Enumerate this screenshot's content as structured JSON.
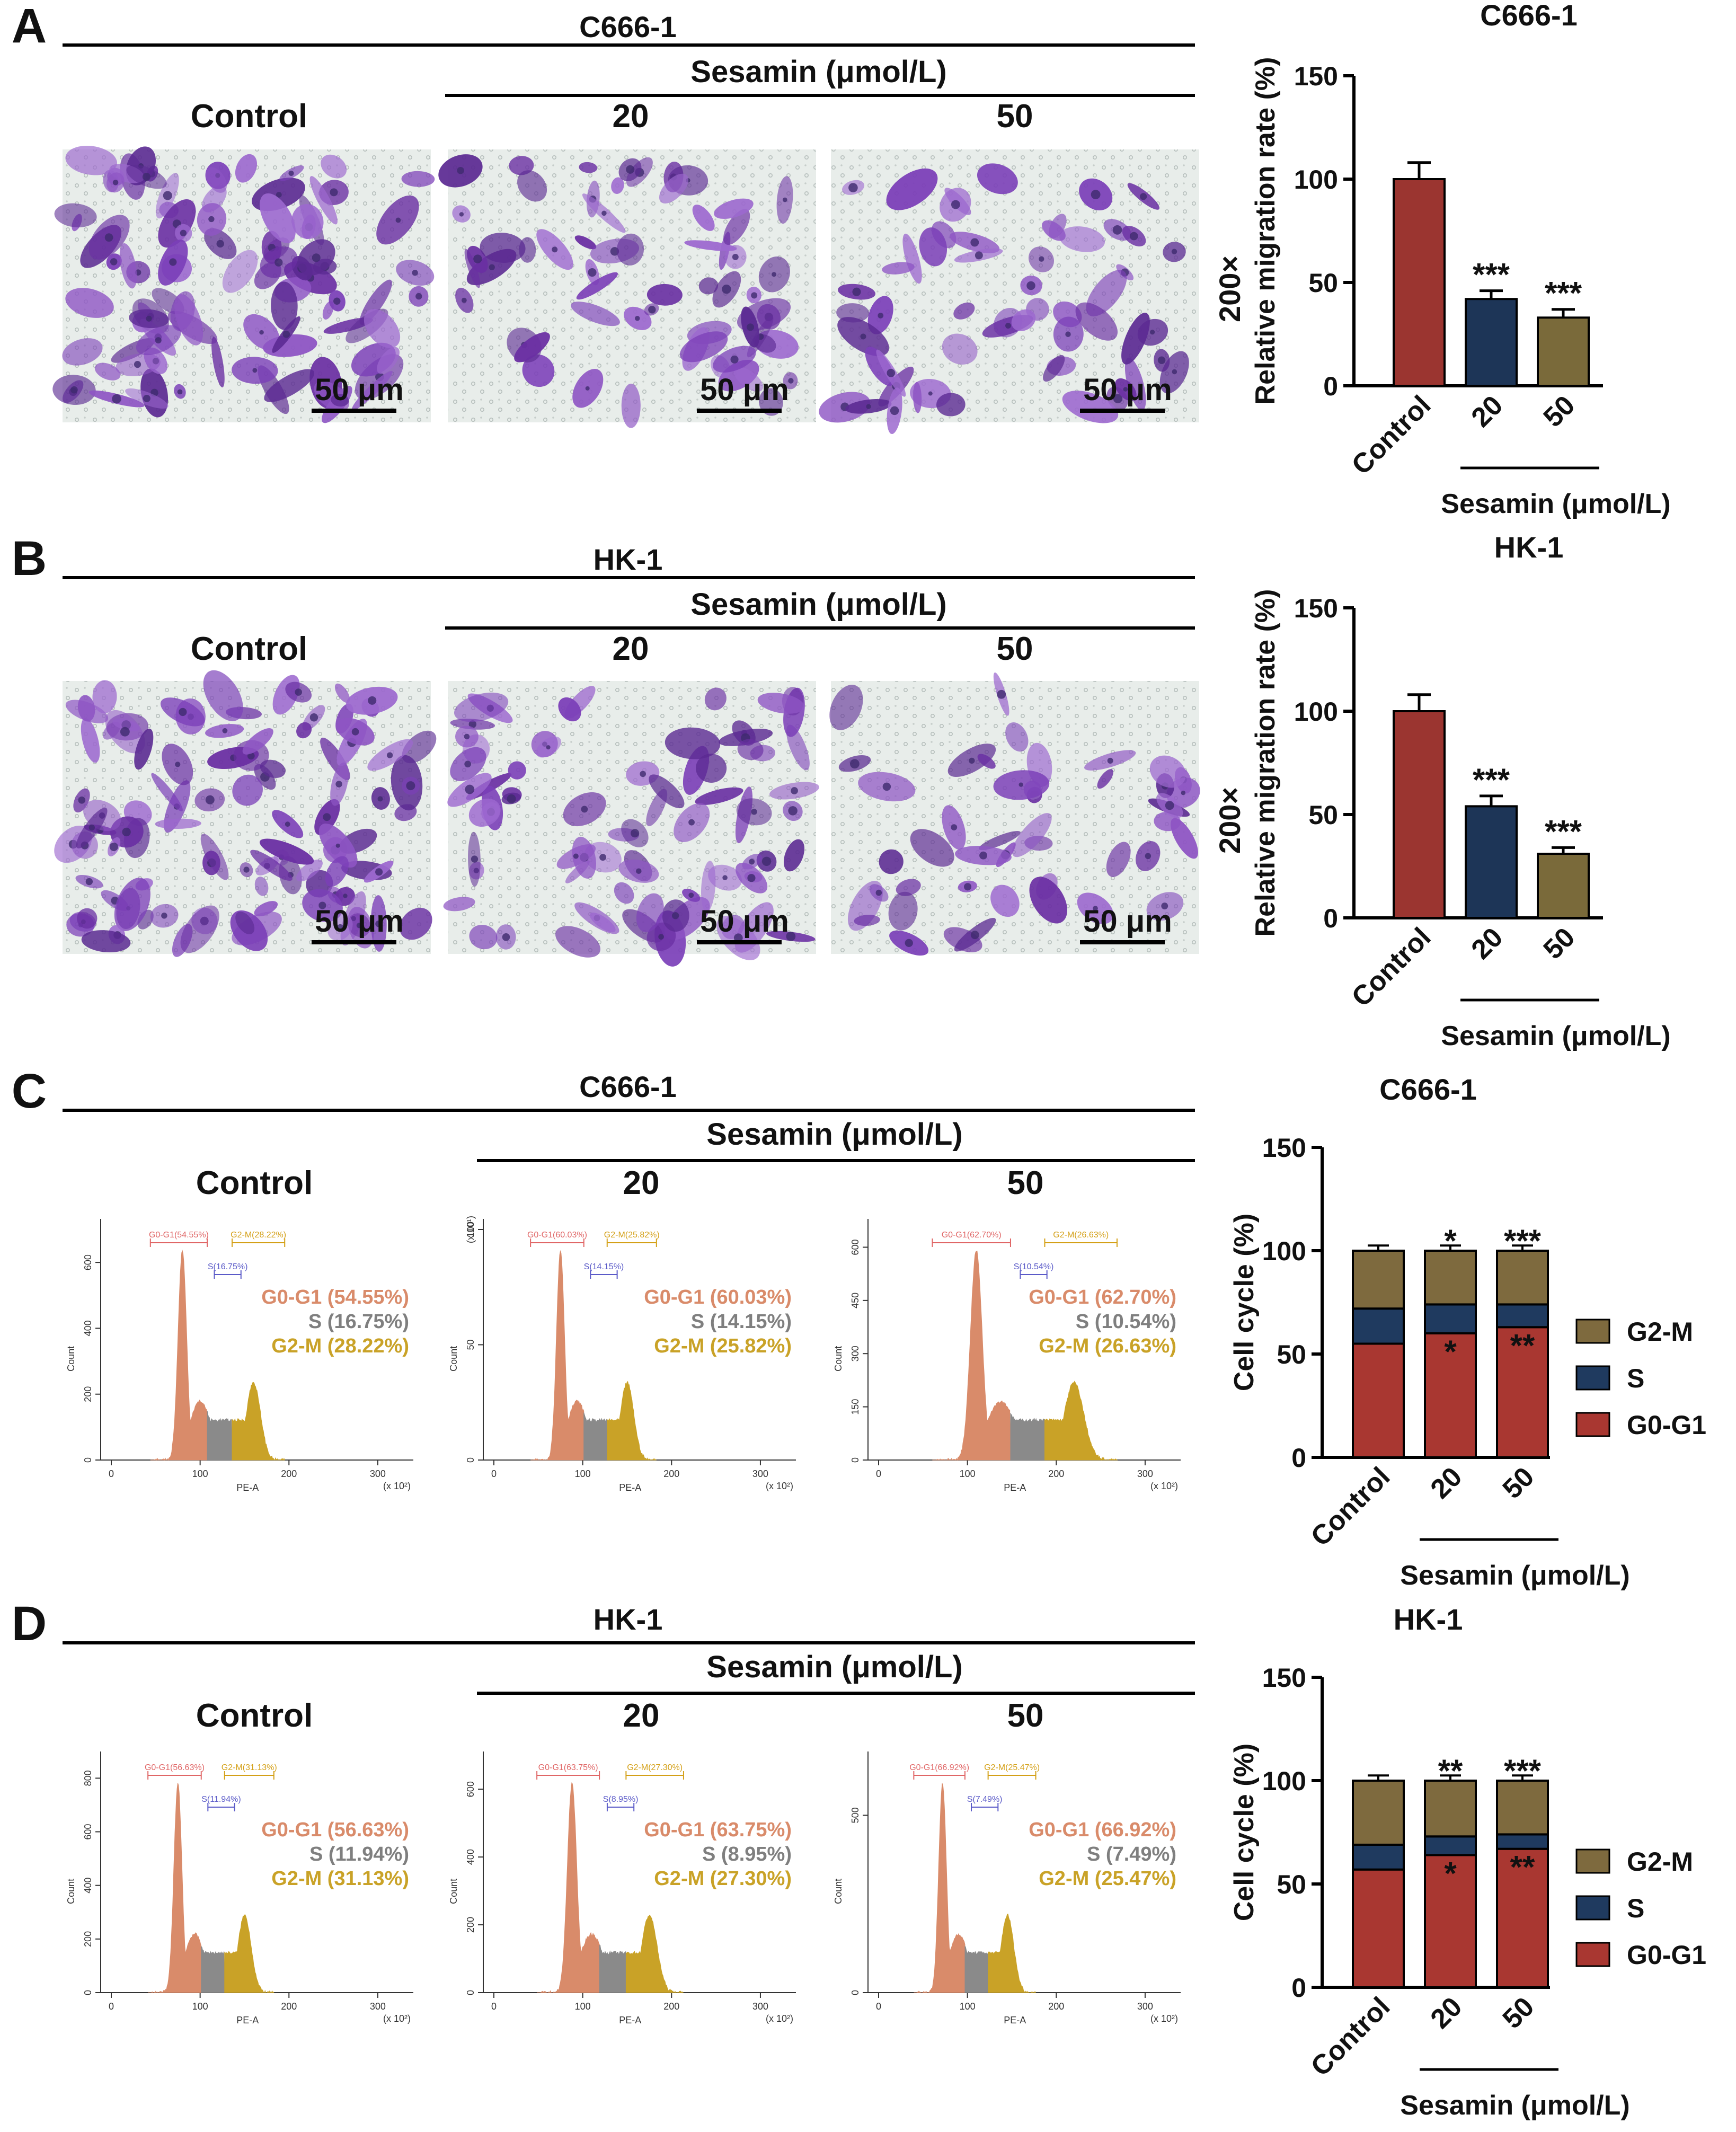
{
  "colors": {
    "control": "#9B3530",
    "s20": "#1D3557",
    "s50": "#7A6A3A",
    "g0g1": "#A93731",
    "s_phase": "#1F3A5F",
    "g2m": "#7E6A3E",
    "stain": "#7A3FB5",
    "hist_g0g1": "#D98B6A",
    "hist_s": "#8A8A8A",
    "hist_g2m": "#C9A227",
    "hist_g0g1_label": "#E06666",
    "hist_s_label": "#5A5AC8",
    "hist_g2m_label": "#D4A017"
  },
  "panels": {
    "A": {
      "letter": "A",
      "cell_line": "C666-1",
      "treatment_label": "Sesamin (μmol/L)",
      "conditions": [
        "Control",
        "20",
        "50"
      ],
      "scale_bar": "50 μm",
      "magnification": "200×"
    },
    "B": {
      "letter": "B",
      "cell_line": "HK-1",
      "treatment_label": "Sesamin (μmol/L)",
      "conditions": [
        "Control",
        "20",
        "50"
      ],
      "scale_bar": "50 μm",
      "magnification": "200×"
    },
    "C": {
      "letter": "C",
      "cell_line": "C666-1",
      "treatment_label": "Sesamin (μmol/L)",
      "conditions": [
        "Control",
        "20",
        "50"
      ],
      "histograms": [
        {
          "g0g1_gate": "G0-G1(54.55%)",
          "s_gate": "S(16.75%)",
          "g2m_gate": "G2-M(28.22%)",
          "g0g1": "G0-G1 (54.55%)",
          "s": "S (16.75%)",
          "g2m": "G2-M (28.22%)",
          "y_mult": "",
          "y_ticks": [
            "0",
            "200",
            "400",
            "600"
          ],
          "y_max": 700,
          "x_ticks": [
            "0",
            "100",
            "200",
            "300"
          ],
          "x_mult": "(x 10²)",
          "xlabel": "PE-A",
          "ylabel": "Count",
          "g0g1_peak": 80,
          "g2m_peak": 160
        },
        {
          "g0g1_gate": "G0-G1(60.03%)",
          "s_gate": "S(14.15%)",
          "g2m_gate": "G2-M(25.82%)",
          "g0g1": "G0-G1 (60.03%)",
          "s": "S (14.15%)",
          "g2m": "G2-M (25.82%)",
          "y_mult": "(x 10¹)",
          "y_ticks": [
            "0",
            "50",
            "100"
          ],
          "y_max": 100,
          "x_ticks": [
            "0",
            "100",
            "200",
            "300"
          ],
          "x_mult": "(x 10²)",
          "xlabel": "PE-A",
          "ylabel": "Count",
          "g0g1_peak": 75,
          "g2m_peak": 150
        },
        {
          "g0g1_gate": "G0-G1(62.70%)",
          "s_gate": "S(10.54%)",
          "g2m_gate": "G2-M(26.63%)",
          "g0g1": "G0-G1 (62.70%)",
          "s": "S (10.54%)",
          "g2m": "G2-M (26.63%)",
          "y_mult": "",
          "y_ticks": [
            "0",
            "150",
            "300",
            "450",
            "600"
          ],
          "y_max": 650,
          "x_ticks": [
            "0",
            "100",
            "200",
            "300"
          ],
          "x_mult": "(x 10²)",
          "xlabel": "PE-A",
          "ylabel": "Count",
          "g0g1_peak": 110,
          "g2m_peak": 220
        }
      ]
    },
    "D": {
      "letter": "D",
      "cell_line": "HK-1",
      "treatment_label": "Sesamin (μmol/L)",
      "conditions": [
        "Control",
        "20",
        "50"
      ],
      "histograms": [
        {
          "g0g1_gate": "G0-G1(56.63%)",
          "s_gate": "S(11.94%)",
          "g2m_gate": "G2-M(31.13%)",
          "g0g1": "G0-G1 (56.63%)",
          "s": "S (11.94%)",
          "g2m": "G2-M (31.13%)",
          "y_mult": "",
          "y_ticks": [
            "0",
            "200",
            "400",
            "600",
            "800"
          ],
          "y_max": 860,
          "x_ticks": [
            "0",
            "100",
            "200",
            "300"
          ],
          "x_mult": "(x 10²)",
          "xlabel": "PE-A",
          "ylabel": "Count",
          "g0g1_peak": 75,
          "g2m_peak": 150
        },
        {
          "g0g1_gate": "G0-G1(63.75%)",
          "s_gate": "S(8.95%)",
          "g2m_gate": "G2-M(27.30%)",
          "g0g1": "G0-G1 (63.75%)",
          "s": "S (8.95%)",
          "g2m": "G2-M (27.30%)",
          "y_mult": "",
          "y_ticks": [
            "0",
            "200",
            "400",
            "600"
          ],
          "y_max": 680,
          "x_ticks": [
            "0",
            "100",
            "200",
            "300"
          ],
          "x_mult": "(x 10²)",
          "xlabel": "PE-A",
          "ylabel": "Count",
          "g0g1_peak": 88,
          "g2m_peak": 175
        },
        {
          "g0g1_gate": "G0-G1(66.92%)",
          "s_gate": "S(7.49%)",
          "g2m_gate": "G2-M(25.47%)",
          "g0g1": "G0-G1 (66.92%)",
          "s": "S (7.49%)",
          "g2m": "G2-M (25.47%)",
          "y_mult": "",
          "y_ticks": [
            "0",
            "500"
          ],
          "y_max": 650,
          "x_ticks": [
            "0",
            "100",
            "200",
            "300"
          ],
          "x_mult": "(x 10²)",
          "xlabel": "PE-A",
          "ylabel": "Count",
          "g0g1_peak": 72,
          "g2m_peak": 145
        }
      ]
    }
  },
  "chart_data": [
    {
      "panel": "A",
      "type": "bar",
      "title": "C666-1",
      "ylabel": "Relative migration rate (%)",
      "xgroup_label": "Sesamin (μmol/L)",
      "categories": [
        "Control",
        "20",
        "50"
      ],
      "values": [
        100,
        42,
        33
      ],
      "errors": [
        8,
        4,
        4
      ],
      "significance": [
        "",
        "***",
        "***"
      ],
      "ylim": [
        0,
        150
      ],
      "yticks": [
        0,
        50,
        100,
        150
      ]
    },
    {
      "panel": "B",
      "type": "bar",
      "title": "HK-1",
      "ylabel": "Relative migration rate (%)",
      "xgroup_label": "Sesamin (μmol/L)",
      "categories": [
        "Control",
        "20",
        "50"
      ],
      "values": [
        100,
        54,
        31
      ],
      "errors": [
        8,
        5,
        3
      ],
      "significance": [
        "",
        "***",
        "***"
      ],
      "ylim": [
        0,
        150
      ],
      "yticks": [
        0,
        50,
        100,
        150
      ]
    },
    {
      "panel": "C",
      "type": "bar",
      "stacked": true,
      "title": "C666-1",
      "ylabel": "Cell cycle (%)",
      "xgroup_label": "Sesamin (μmol/L)",
      "categories": [
        "Control",
        "20",
        "50"
      ],
      "series": [
        {
          "name": "G0-G1",
          "values": [
            55,
            60,
            63
          ],
          "errors": [
            1.5,
            2,
            2
          ],
          "significance": [
            "",
            "*",
            "**"
          ]
        },
        {
          "name": "S",
          "values": [
            17,
            14,
            11
          ],
          "errors": [
            1.5,
            1.5,
            1.5
          ],
          "significance": [
            "",
            "",
            ""
          ]
        },
        {
          "name": "G2-M",
          "values": [
            28,
            26,
            26
          ],
          "errors": [
            2.5,
            2.5,
            2.5
          ],
          "significance": [
            "",
            "*",
            "***"
          ]
        }
      ],
      "ylim": [
        0,
        150
      ],
      "yticks": [
        0,
        50,
        100,
        150
      ],
      "legend_order": [
        "G2-M",
        "S",
        "G0-G1"
      ],
      "legend": "right"
    },
    {
      "panel": "D",
      "type": "bar",
      "stacked": true,
      "title": "HK-1",
      "ylabel": "Cell cycle (%)",
      "xgroup_label": "Sesamin (μmol/L)",
      "categories": [
        "Control",
        "20",
        "50"
      ],
      "series": [
        {
          "name": "G0-G1",
          "values": [
            57,
            64,
            67
          ],
          "errors": [
            1.5,
            2,
            2
          ],
          "significance": [
            "",
            "*",
            "**"
          ]
        },
        {
          "name": "S",
          "values": [
            12,
            9,
            7
          ],
          "errors": [
            1,
            1,
            1
          ],
          "significance": [
            "",
            "",
            ""
          ]
        },
        {
          "name": "G2-M",
          "values": [
            31,
            27,
            26
          ],
          "errors": [
            2.5,
            2.5,
            2.5
          ],
          "significance": [
            "",
            "**",
            "***"
          ]
        }
      ],
      "ylim": [
        0,
        150
      ],
      "yticks": [
        0,
        50,
        100,
        150
      ],
      "legend_order": [
        "G2-M",
        "S",
        "G0-G1"
      ],
      "legend": "right"
    }
  ]
}
